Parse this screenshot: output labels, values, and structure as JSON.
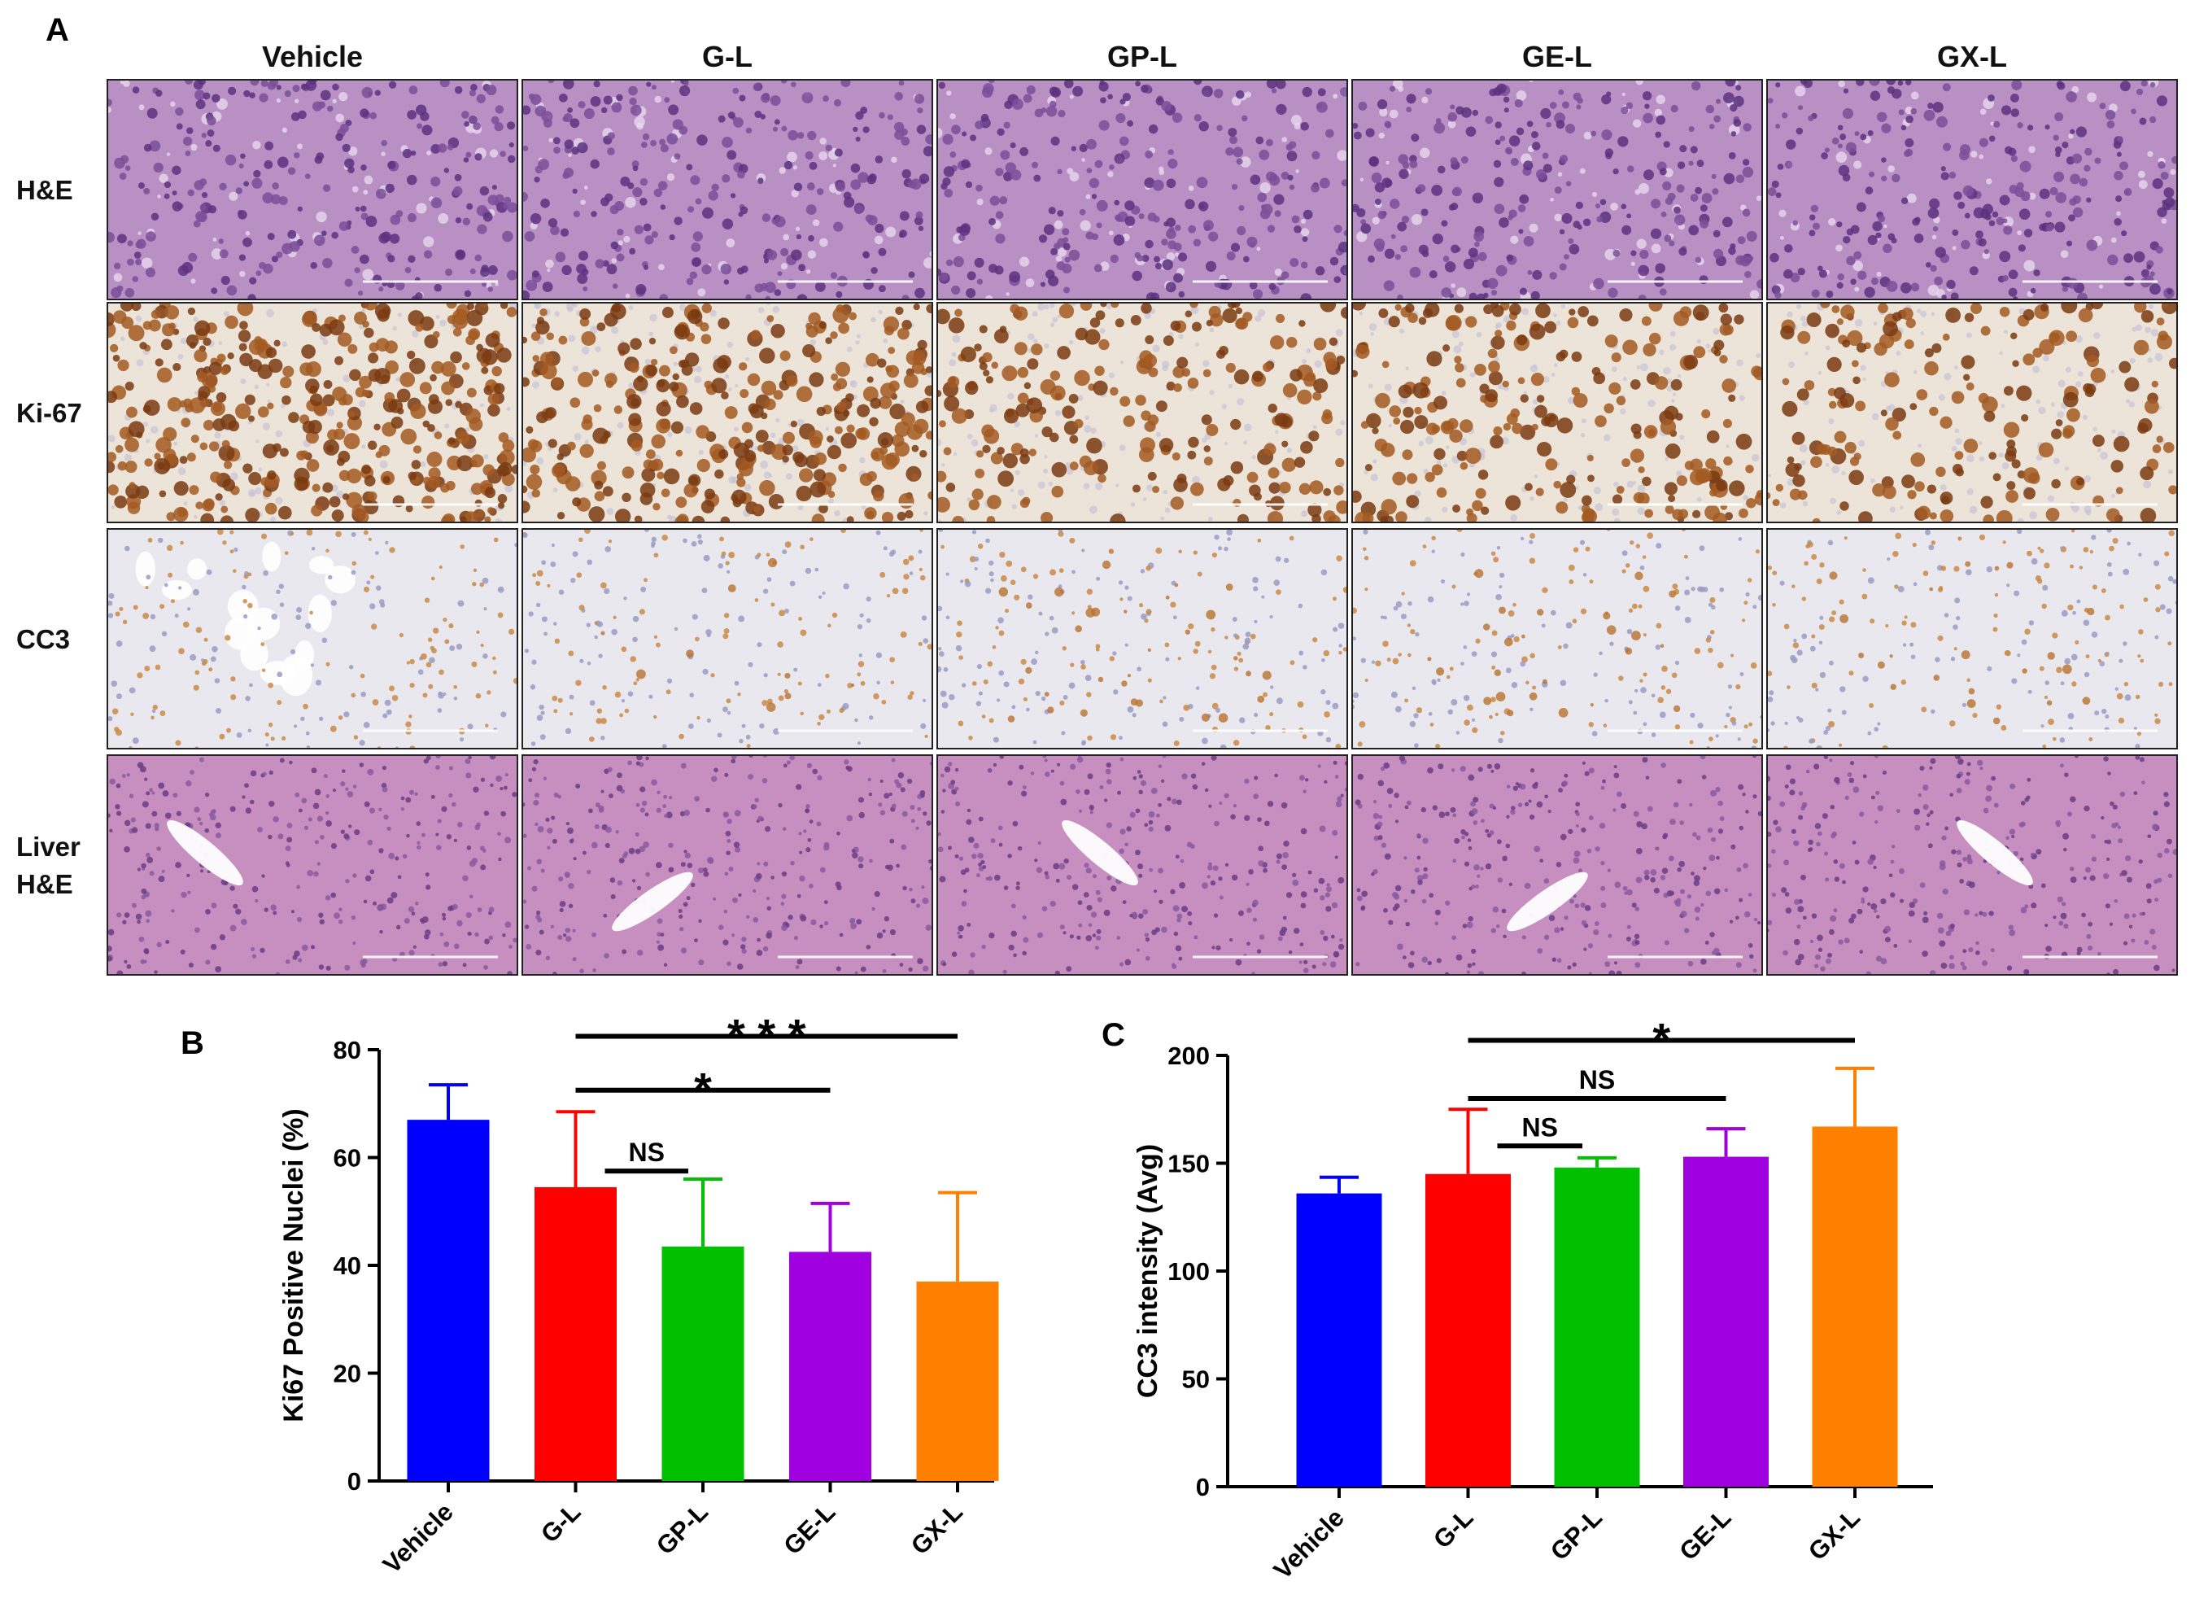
{
  "panel_a": {
    "letter": "A",
    "columns": [
      "Vehicle",
      "G-L",
      "GP-L",
      "GE-L",
      "GX-L"
    ],
    "rows": [
      {
        "lines": [
          "H&E"
        ],
        "stain": "he-tumor",
        "base": "#b990c4",
        "dot": "#5c3280",
        "dot2": "#7a4f99"
      },
      {
        "lines": [
          "Ki-67"
        ],
        "stain": "ki67",
        "base": "#ece4d8",
        "dot": "#7a3a10",
        "dot2": "#a35a22"
      },
      {
        "lines": [
          "CC3"
        ],
        "stain": "cc3",
        "base": "#e9e8ef",
        "dot": "#9b9bc4",
        "dot2": "#c98a45"
      },
      {
        "lines": [
          "Liver",
          "H&E"
        ],
        "stain": "he-liver",
        "base": "#c68fbf",
        "dot": "#6b3d85",
        "dot2": "#8a5aa0"
      }
    ],
    "ki67_density": [
      1.0,
      0.85,
      0.6,
      0.62,
      0.5
    ],
    "cc3_brown": [
      0.0,
      0.15,
      0.5,
      0.4,
      0.35
    ]
  },
  "chart_data": [
    {
      "panel": "B",
      "type": "bar",
      "categories": [
        "Vehicle",
        "G-L",
        "GP-L",
        "GE-L",
        "GX-L"
      ],
      "values": [
        67,
        54.5,
        43.5,
        42.5,
        37
      ],
      "errors": [
        6.5,
        14,
        12.5,
        9,
        16.5
      ],
      "colors": [
        "#0000ff",
        "#ff0000",
        "#00c000",
        "#a000e0",
        "#ff8000"
      ],
      "xlabel": "",
      "ylabel": "Ki67 Positive Nuclei (%)",
      "ylim": [
        0,
        80
      ],
      "yticks": [
        0,
        20,
        40,
        60,
        80
      ],
      "significance": [
        {
          "from": "G-L",
          "to": "GP-L",
          "label": "NS",
          "y": 57.5,
          "style": "text"
        },
        {
          "from": "G-L",
          "to": "GE-L",
          "label": "*",
          "y": 72.5,
          "style": "star"
        },
        {
          "from": "G-L",
          "to": "GX-L",
          "label": "* * *",
          "y": 82.5,
          "style": "star"
        }
      ]
    },
    {
      "panel": "C",
      "type": "bar",
      "categories": [
        "Vehicle",
        "G-L",
        "GP-L",
        "GE-L",
        "GX-L"
      ],
      "values": [
        136,
        145,
        148,
        153,
        167
      ],
      "errors": [
        7.5,
        30,
        4.5,
        13,
        27
      ],
      "colors": [
        "#0000ff",
        "#ff0000",
        "#00c000",
        "#a000e0",
        "#ff8000"
      ],
      "xlabel": "",
      "ylabel": "CC3 intensity (Avg)",
      "ylim": [
        0,
        200
      ],
      "yticks": [
        0,
        50,
        100,
        150,
        200
      ],
      "significance": [
        {
          "from": "G-L",
          "to": "GP-L",
          "label": "NS",
          "y": 158,
          "style": "text"
        },
        {
          "from": "G-L",
          "to": "GE-L",
          "label": "NS",
          "y": 180,
          "style": "text"
        },
        {
          "from": "G-L",
          "to": "GX-L",
          "label": "*",
          "y": 207,
          "style": "star"
        }
      ]
    }
  ]
}
